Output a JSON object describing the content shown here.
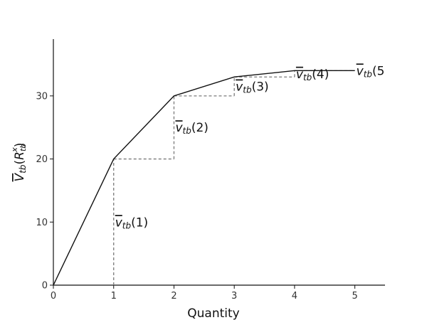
{
  "chart_data": {
    "type": "line",
    "xlabel": "Quantity",
    "ylabel": {
      "base": "V",
      "sub": "tb",
      "open": "(",
      "inner": "R",
      "inner_sub": "tb",
      "inner_sup": "x",
      "close": ")"
    },
    "xlim": [
      0,
      5.5
    ],
    "ylim": [
      0,
      39
    ],
    "x_ticks": [
      0,
      1,
      2,
      3,
      4,
      5
    ],
    "y_ticks": [
      0,
      10,
      20,
      30
    ],
    "grid": false,
    "series": [
      {
        "x": [
          0,
          1,
          2,
          3,
          4,
          5
        ],
        "values": [
          0,
          20,
          30,
          33,
          34,
          34
        ],
        "style": "solid",
        "color": "#111111"
      }
    ],
    "marginal_steps": [
      {
        "x": 1,
        "y_from": 0,
        "y_to": 20,
        "label": {
          "base": "v",
          "sub": "tb",
          "open": "(",
          "num": "1",
          "close": ")"
        }
      },
      {
        "x": 2,
        "y_from": 20,
        "y_to": 30,
        "label": {
          "base": "v",
          "sub": "tb",
          "open": "(",
          "num": "2",
          "close": ")"
        }
      },
      {
        "x": 3,
        "y_from": 30,
        "y_to": 33,
        "label": {
          "base": "v",
          "sub": "tb",
          "open": "(",
          "num": "3",
          "close": ")"
        }
      },
      {
        "x": 4,
        "y_from": 33,
        "y_to": 34,
        "label": {
          "base": "v",
          "sub": "tb",
          "open": "(",
          "num": "4",
          "close": ")"
        }
      },
      {
        "x": 5,
        "y_from": 34,
        "y_to": 34,
        "label": {
          "base": "v",
          "sub": "tb",
          "open": "(",
          "num": "5",
          "close": ""
        }
      }
    ],
    "step_color": "#7a7a7a",
    "line_color": "#111111"
  }
}
